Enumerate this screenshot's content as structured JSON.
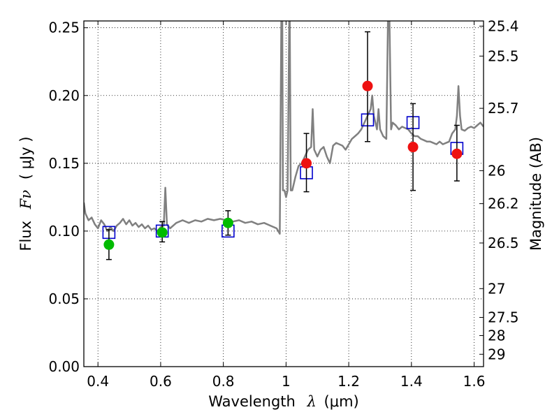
{
  "chart_data": {
    "type": "scatter",
    "xlabel": {
      "prefix": "Wavelength",
      "symbol": "λ",
      "unit": "(μm)"
    },
    "ylabel": {
      "prefix": "Flux",
      "symbol": "Fν",
      "unit": "( μJy )"
    },
    "y2label": "Magnitude (AB)",
    "xlim": [
      0.355,
      1.63
    ],
    "ylim": [
      0.0,
      0.255
    ],
    "grid": true,
    "legend": "none",
    "x_ticks": [
      {
        "value": 0.4,
        "label": "0.4"
      },
      {
        "value": 0.6,
        "label": "0.6"
      },
      {
        "value": 0.8,
        "label": "0.8"
      },
      {
        "value": 1.0,
        "label": "1"
      },
      {
        "value": 1.2,
        "label": "1.2"
      },
      {
        "value": 1.4,
        "label": "1.4"
      },
      {
        "value": 1.6,
        "label": "1.6"
      }
    ],
    "y_ticks": [
      {
        "value": 0.0,
        "label": "0.00"
      },
      {
        "value": 0.05,
        "label": "0.05"
      },
      {
        "value": 0.1,
        "label": "0.10"
      },
      {
        "value": 0.15,
        "label": "0.15"
      },
      {
        "value": 0.2,
        "label": "0.20"
      },
      {
        "value": 0.25,
        "label": "0.25"
      }
    ],
    "y2_ticks": [
      {
        "value": 25.4,
        "label": "25.4"
      },
      {
        "value": 25.5,
        "label": "25.5"
      },
      {
        "value": 25.7,
        "label": "25.7"
      },
      {
        "value": 26.0,
        "label": "26"
      },
      {
        "value": 26.2,
        "label": "26.2"
      },
      {
        "value": 26.5,
        "label": "26.5"
      },
      {
        "value": 27.0,
        "label": "27"
      },
      {
        "value": 27.5,
        "label": "27.5"
      },
      {
        "value": 28.0,
        "label": "28"
      },
      {
        "value": 29.0,
        "label": "29"
      }
    ],
    "series": [
      {
        "kind": "line",
        "color": "#808080",
        "points": [
          [
            0.355,
            0.121
          ],
          [
            0.36,
            0.113
          ],
          [
            0.37,
            0.108
          ],
          [
            0.38,
            0.11
          ],
          [
            0.39,
            0.105
          ],
          [
            0.4,
            0.102
          ],
          [
            0.41,
            0.108
          ],
          [
            0.42,
            0.105
          ],
          [
            0.43,
            0.1
          ],
          [
            0.44,
            0.103
          ],
          [
            0.45,
            0.1
          ],
          [
            0.46,
            0.104
          ],
          [
            0.47,
            0.106
          ],
          [
            0.48,
            0.109
          ],
          [
            0.49,
            0.105
          ],
          [
            0.5,
            0.108
          ],
          [
            0.51,
            0.104
          ],
          [
            0.52,
            0.106
          ],
          [
            0.53,
            0.103
          ],
          [
            0.54,
            0.105
          ],
          [
            0.55,
            0.102
          ],
          [
            0.56,
            0.104
          ],
          [
            0.57,
            0.101
          ],
          [
            0.58,
            0.102
          ],
          [
            0.59,
            0.1
          ],
          [
            0.6,
            0.103
          ],
          [
            0.61,
            0.104
          ],
          [
            0.615,
            0.132
          ],
          [
            0.62,
            0.105
          ],
          [
            0.63,
            0.102
          ],
          [
            0.65,
            0.106
          ],
          [
            0.67,
            0.108
          ],
          [
            0.69,
            0.106
          ],
          [
            0.71,
            0.108
          ],
          [
            0.73,
            0.107
          ],
          [
            0.75,
            0.109
          ],
          [
            0.77,
            0.108
          ],
          [
            0.79,
            0.109
          ],
          [
            0.81,
            0.108
          ],
          [
            0.83,
            0.107
          ],
          [
            0.85,
            0.108
          ],
          [
            0.87,
            0.106
          ],
          [
            0.89,
            0.107
          ],
          [
            0.91,
            0.105
          ],
          [
            0.93,
            0.106
          ],
          [
            0.95,
            0.104
          ],
          [
            0.97,
            0.102
          ],
          [
            0.98,
            0.098
          ],
          [
            0.985,
            0.255
          ],
          [
            0.988,
            0.255
          ],
          [
            0.99,
            0.13
          ],
          [
            0.995,
            0.13
          ],
          [
            1.0,
            0.125
          ],
          [
            1.005,
            0.13
          ],
          [
            1.01,
            0.255
          ],
          [
            1.012,
            0.255
          ],
          [
            1.015,
            0.13
          ],
          [
            1.02,
            0.13
          ],
          [
            1.03,
            0.14
          ],
          [
            1.04,
            0.148
          ],
          [
            1.05,
            0.15
          ],
          [
            1.06,
            0.155
          ],
          [
            1.07,
            0.16
          ],
          [
            1.08,
            0.162
          ],
          [
            1.085,
            0.19
          ],
          [
            1.09,
            0.16
          ],
          [
            1.1,
            0.155
          ],
          [
            1.11,
            0.16
          ],
          [
            1.12,
            0.162
          ],
          [
            1.13,
            0.155
          ],
          [
            1.14,
            0.15
          ],
          [
            1.15,
            0.163
          ],
          [
            1.16,
            0.165
          ],
          [
            1.17,
            0.164
          ],
          [
            1.18,
            0.163
          ],
          [
            1.19,
            0.16
          ],
          [
            1.2,
            0.164
          ],
          [
            1.21,
            0.168
          ],
          [
            1.22,
            0.17
          ],
          [
            1.23,
            0.172
          ],
          [
            1.24,
            0.175
          ],
          [
            1.25,
            0.18
          ],
          [
            1.26,
            0.185
          ],
          [
            1.27,
            0.19
          ],
          [
            1.275,
            0.2
          ],
          [
            1.28,
            0.185
          ],
          [
            1.29,
            0.175
          ],
          [
            1.295,
            0.19
          ],
          [
            1.3,
            0.175
          ],
          [
            1.31,
            0.17
          ],
          [
            1.32,
            0.168
          ],
          [
            1.325,
            0.255
          ],
          [
            1.33,
            0.255
          ],
          [
            1.335,
            0.175
          ],
          [
            1.34,
            0.18
          ],
          [
            1.35,
            0.178
          ],
          [
            1.36,
            0.175
          ],
          [
            1.37,
            0.177
          ],
          [
            1.38,
            0.176
          ],
          [
            1.39,
            0.175
          ],
          [
            1.4,
            0.172
          ],
          [
            1.41,
            0.17
          ],
          [
            1.42,
            0.17
          ],
          [
            1.43,
            0.168
          ],
          [
            1.44,
            0.167
          ],
          [
            1.45,
            0.166
          ],
          [
            1.46,
            0.166
          ],
          [
            1.47,
            0.165
          ],
          [
            1.48,
            0.164
          ],
          [
            1.49,
            0.166
          ],
          [
            1.5,
            0.164
          ],
          [
            1.51,
            0.165
          ],
          [
            1.52,
            0.166
          ],
          [
            1.53,
            0.172
          ],
          [
            1.54,
            0.175
          ],
          [
            1.545,
            0.185
          ],
          [
            1.55,
            0.207
          ],
          [
            1.555,
            0.185
          ],
          [
            1.56,
            0.175
          ],
          [
            1.57,
            0.174
          ],
          [
            1.58,
            0.176
          ],
          [
            1.59,
            0.177
          ],
          [
            1.6,
            0.176
          ],
          [
            1.61,
            0.178
          ],
          [
            1.62,
            0.18
          ],
          [
            1.63,
            0.177
          ]
        ]
      },
      {
        "kind": "squares",
        "color": "#0000cc",
        "points": [
          [
            0.435,
            0.099
          ],
          [
            0.605,
            0.1
          ],
          [
            0.815,
            0.1
          ],
          [
            1.065,
            0.143
          ],
          [
            1.26,
            0.182
          ],
          [
            1.405,
            0.18
          ],
          [
            1.545,
            0.161
          ]
        ]
      },
      {
        "kind": "points",
        "color": "#00bb00",
        "points": [
          {
            "x": 0.435,
            "y": 0.09,
            "lo": 0.079,
            "hi": 0.101
          },
          {
            "x": 0.605,
            "y": 0.099,
            "lo": 0.092,
            "hi": 0.107
          },
          {
            "x": 0.815,
            "y": 0.106,
            "lo": 0.097,
            "hi": 0.115
          }
        ]
      },
      {
        "kind": "points",
        "color": "#ee1111",
        "points": [
          {
            "x": 1.065,
            "y": 0.15,
            "lo": 0.129,
            "hi": 0.172
          },
          {
            "x": 1.26,
            "y": 0.207,
            "lo": 0.166,
            "hi": 0.247
          },
          {
            "x": 1.405,
            "y": 0.162,
            "lo": 0.13,
            "hi": 0.194
          },
          {
            "x": 1.545,
            "y": 0.157,
            "lo": 0.137,
            "hi": 0.178
          }
        ]
      }
    ]
  }
}
